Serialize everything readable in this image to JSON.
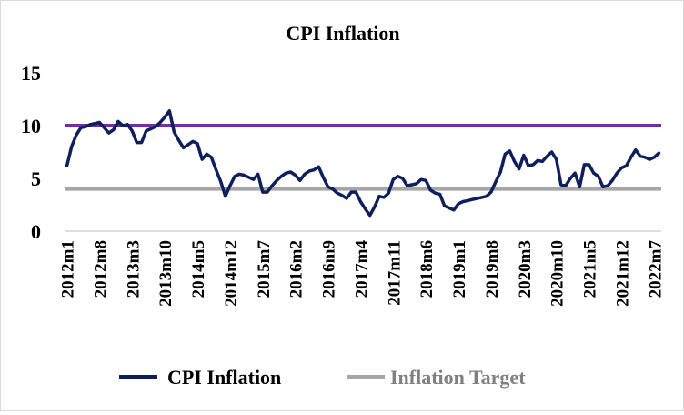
{
  "chart_data": {
    "type": "line",
    "title": "CPI Inflation",
    "xlabel": "",
    "ylabel": "",
    "ylim": [
      0,
      15
    ],
    "yticks": [
      0,
      5,
      10,
      15
    ],
    "grid": false,
    "legend_position": "bottom",
    "x_tick_labels": [
      "2012m1",
      "2012m8",
      "2013m3",
      "2013m10",
      "2014m5",
      "2014m12",
      "2015m7",
      "2016m2",
      "2016m9",
      "2017m4",
      "2017m11",
      "2018m6",
      "2019m1",
      "2019m8",
      "2020m3",
      "2020m10",
      "2021m5",
      "2021m12",
      "2022m7"
    ],
    "start_period": "2012m1",
    "series": [
      {
        "name": "CPI Inflation",
        "color": "#0f1f5c",
        "values": [
          6.2,
          8.0,
          9.1,
          9.8,
          9.9,
          10.1,
          10.2,
          10.3,
          9.8,
          9.3,
          9.6,
          10.4,
          10.0,
          10.1,
          9.5,
          8.4,
          8.4,
          9.5,
          9.7,
          9.9,
          10.3,
          10.8,
          11.4,
          9.4,
          8.6,
          7.9,
          8.2,
          8.5,
          8.3,
          6.8,
          7.3,
          7.0,
          5.8,
          4.7,
          3.3,
          4.3,
          5.2,
          5.4,
          5.3,
          5.1,
          4.9,
          5.4,
          3.7,
          3.7,
          4.3,
          4.8,
          5.2,
          5.5,
          5.6,
          5.3,
          4.8,
          5.4,
          5.7,
          5.8,
          6.1,
          5.1,
          4.2,
          4.0,
          3.6,
          3.4,
          3.1,
          3.7,
          3.7,
          2.8,
          2.1,
          1.5,
          2.3,
          3.3,
          3.2,
          3.6,
          4.9,
          5.2,
          5.0,
          4.3,
          4.4,
          4.5,
          4.9,
          4.8,
          3.9,
          3.6,
          3.5,
          2.4,
          2.2,
          2.0,
          2.6,
          2.8,
          2.9,
          3.0,
          3.1,
          3.2,
          3.3,
          3.7,
          4.7,
          5.6,
          7.3,
          7.6,
          6.6,
          5.9,
          7.2,
          6.2,
          6.3,
          6.7,
          6.6,
          7.1,
          7.5,
          6.8,
          4.4,
          4.3,
          5.0,
          5.5,
          4.2,
          6.3,
          6.3,
          5.5,
          5.2,
          4.2,
          4.3,
          4.8,
          5.5,
          6.0,
          6.2,
          7.0,
          7.7,
          7.1,
          7.0,
          6.8,
          7.0,
          7.4
        ]
      },
      {
        "name": "Inflation Target",
        "color": "#a6a6a6",
        "constant": 4
      },
      {
        "name": "",
        "color": "#7030a0",
        "constant": 10
      }
    ]
  }
}
